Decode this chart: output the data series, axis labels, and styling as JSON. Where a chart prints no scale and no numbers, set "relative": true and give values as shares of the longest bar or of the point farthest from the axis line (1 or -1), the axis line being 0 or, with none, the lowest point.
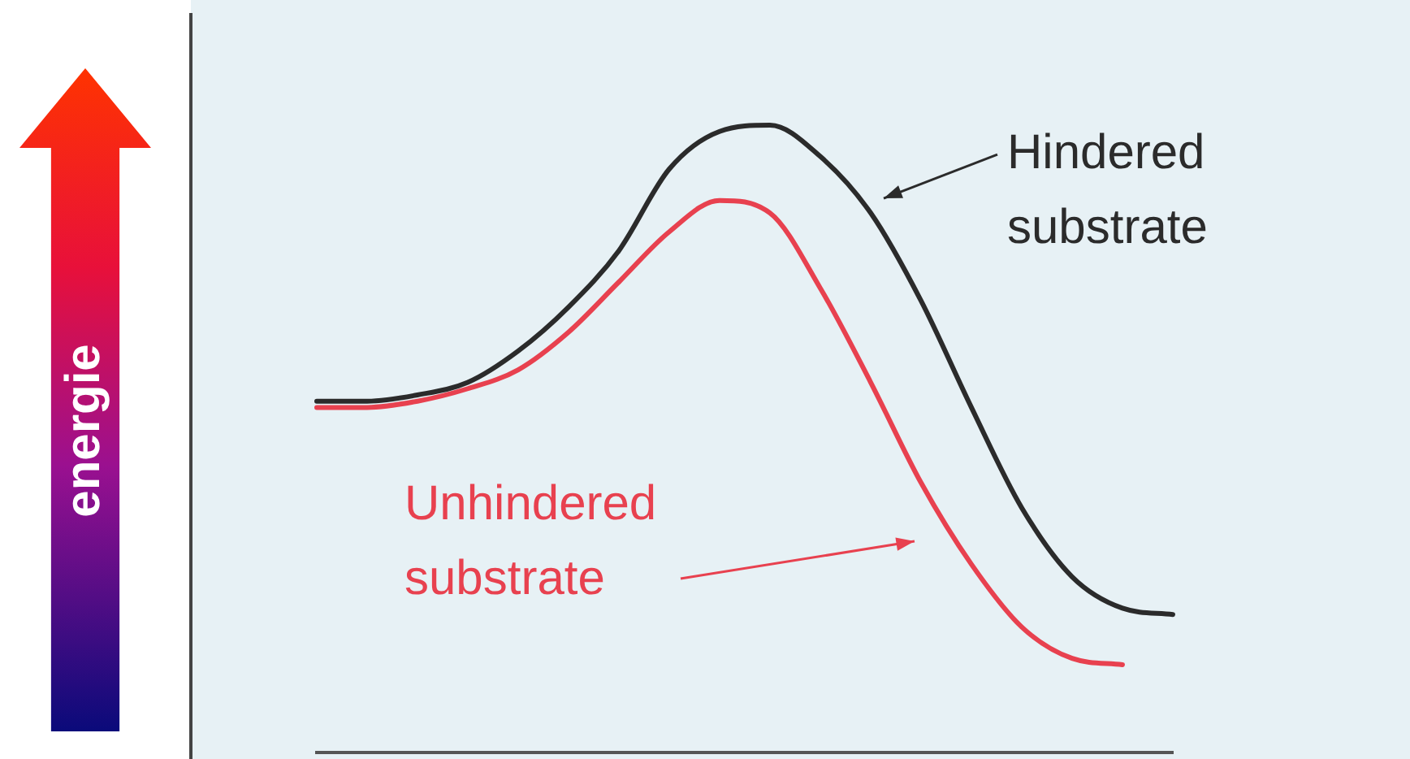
{
  "chart_data": {
    "type": "line",
    "relative": true,
    "ylabel": "energie",
    "legend": "top right",
    "marker": "none",
    "line_style": "solid",
    "categories": [
      null,
      null,
      null,
      null,
      null,
      null,
      null,
      null,
      null,
      null,
      null,
      null,
      null,
      null,
      null,
      null,
      null,
      null
    ],
    "series": [
      {
        "name": "Hindered substrate",
        "color": "#2b2b2b",
        "values": [
          0.56,
          0.56,
          0.57,
          0.59,
          0.64,
          0.71,
          0.8,
          0.93,
          0.99,
          1,
          0.95,
          0.86,
          0.72,
          0.55,
          0.39,
          0.28,
          0.23,
          0.22
        ]
      },
      {
        "name": "Unhindered substrate",
        "color": "#e8414f",
        "values": [
          0.55,
          0.55,
          0.56,
          0.58,
          0.61,
          0.67,
          0.75,
          0.83,
          0.88,
          0.86,
          0.74,
          0.59,
          0.43,
          0.3,
          0.2,
          0.15,
          0.14,
          null
        ]
      }
    ]
  }
}
